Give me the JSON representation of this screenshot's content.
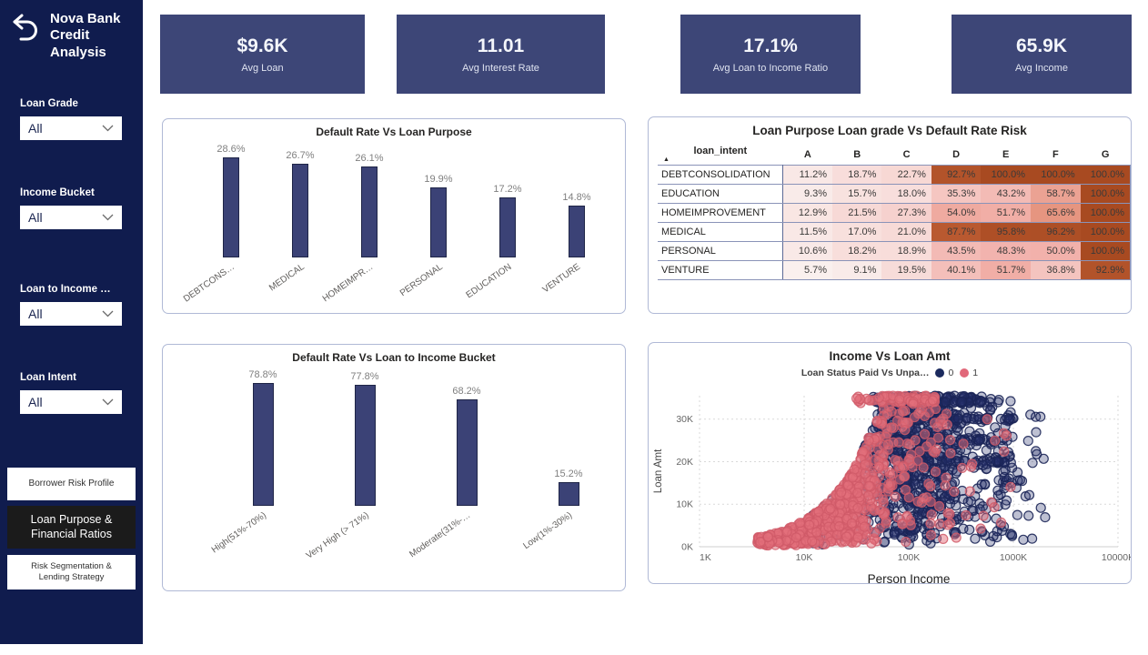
{
  "sidebar": {
    "title": "Nova Bank Credit Analysis",
    "back_icon": "back-undo-arrow",
    "filters": [
      {
        "label": "Loan Grade",
        "value": "All"
      },
      {
        "label": "Income Bucket",
        "value": "All"
      },
      {
        "label": "Loan to Income …",
        "value": "All"
      },
      {
        "label": "Loan Intent",
        "value": "All"
      }
    ],
    "nav": [
      {
        "label": "Borrower Risk Profile",
        "active": false
      },
      {
        "label": "Loan Purpose & Financial Ratios",
        "active": true
      },
      {
        "label": "Risk Segmentation & Lending Strategy",
        "active": false
      }
    ]
  },
  "kpis": [
    {
      "value": "$9.6K",
      "label": "Avg Loan"
    },
    {
      "value": "11.01",
      "label": "Avg Interest Rate"
    },
    {
      "value": "17.1%",
      "label": "Avg Loan to Income Ratio"
    },
    {
      "value": "65.9K",
      "label": "Avg Income"
    }
  ],
  "colors": {
    "sidebar_bg": "#101c4e",
    "kpi_bg": "#3d4677",
    "bar_fill": "#3b4276",
    "bar_border": "#1f2547",
    "panel_border": "#b0b9d6",
    "heat_high": "#a84a21",
    "scatter_navy": "#1b2a5e",
    "scatter_pink": "#e1687a"
  },
  "chart_data": [
    {
      "type": "bar",
      "title": "Default Rate Vs Loan Purpose",
      "categories": [
        "DEBTCONS…",
        "MEDICAL",
        "HOMEIMPR…",
        "PERSONAL",
        "EDUCATION",
        "VENTURE"
      ],
      "values": [
        28.6,
        26.7,
        26.1,
        19.9,
        17.2,
        14.8
      ],
      "value_format": "percent1",
      "xlabel": "",
      "ylabel": "",
      "ylim": [
        0,
        30
      ],
      "grid": false
    },
    {
      "type": "table",
      "title": "Loan Purpose Loan grade Vs Default Rate Risk",
      "row_header": "loan_intent",
      "sort_indicator": "asc",
      "columns": [
        "A",
        "B",
        "C",
        "D",
        "E",
        "F",
        "G"
      ],
      "rows": [
        {
          "label": "DEBTCONSOLIDATION",
          "values": [
            11.2,
            18.7,
            22.7,
            92.7,
            100.0,
            100.0,
            100.0
          ]
        },
        {
          "label": "EDUCATION",
          "values": [
            9.3,
            15.7,
            18.0,
            35.3,
            43.2,
            58.7,
            100.0
          ]
        },
        {
          "label": "HOMEIMPROVEMENT",
          "values": [
            12.9,
            21.5,
            27.3,
            54.0,
            51.7,
            65.6,
            100.0
          ]
        },
        {
          "label": "MEDICAL",
          "values": [
            11.5,
            17.0,
            21.0,
            87.7,
            95.8,
            96.2,
            100.0
          ]
        },
        {
          "label": "PERSONAL",
          "values": [
            10.6,
            18.2,
            18.9,
            43.5,
            48.3,
            50.0,
            100.0
          ]
        },
        {
          "label": "VENTURE",
          "values": [
            5.7,
            9.1,
            19.5,
            40.1,
            51.7,
            36.8,
            92.9
          ]
        }
      ],
      "value_format": "percent1",
      "heat_stops": [
        [
          0,
          "#fbf8f7"
        ],
        [
          0.5,
          "#f2b1ab"
        ],
        [
          0.72,
          "#e18a6e"
        ],
        [
          0.85,
          "#bd5c33"
        ],
        [
          1,
          "#a84a21"
        ]
      ]
    },
    {
      "type": "bar",
      "title": "Default Rate Vs Loan to Income Bucket",
      "categories": [
        "High(51%-70%)",
        "Very High (> 71%)",
        "Moderate(31%-…",
        "Low(1%-30%)"
      ],
      "values": [
        78.8,
        77.8,
        68.2,
        15.2
      ],
      "value_format": "percent1",
      "xlabel": "",
      "ylabel": "",
      "ylim": [
        0,
        85
      ],
      "grid": false
    },
    {
      "type": "scatter",
      "title": "Income Vs Loan Amt",
      "legend": {
        "label": "Loan Status Paid Vs Unpa…",
        "position": "top",
        "items": [
          {
            "name": "0",
            "color": "#1b2a5e"
          },
          {
            "name": "1",
            "color": "#e1687a"
          }
        ]
      },
      "xlabel": "Person Income",
      "ylabel": "Loan Amt",
      "x_scale": "log",
      "x_ticks": [
        "1K",
        "10K",
        "100K",
        "1000K",
        "10000K"
      ],
      "x_log_range": [
        3,
        7
      ],
      "y_ticks": [
        "0K",
        "10K",
        "20K",
        "30K"
      ],
      "y_tick_values": [
        0,
        10000,
        20000,
        30000
      ],
      "y_range": [
        0,
        35500
      ],
      "grid": "dotted",
      "seed": 42,
      "series": [
        {
          "name": "0",
          "fill": "#24306b",
          "fill_opacity": 0.3,
          "stroke": "#1b2556",
          "stroke_opacity": 0.9,
          "clusters": [
            {
              "n": 620,
              "x": [
                4.45,
                5.55
              ],
              "xshape": "mid",
              "wedge": {
                "slope": 0.62,
                "cap": 35000,
                "min": 500,
                "pow": 0.75
              }
            },
            {
              "n": 140,
              "x": [
                5.3,
                6.0
              ],
              "xshape": "uniform",
              "wedge": {
                "slope": 0.62,
                "cap": 35000,
                "min": 800,
                "pow": 0.9
              }
            },
            {
              "n": 70,
              "x": [
                4.05,
                4.5
              ],
              "xshape": "uniform",
              "wedge": {
                "slope": 0.62,
                "cap": 35000,
                "min": 400,
                "pow": 0.8
              }
            },
            {
              "n": 130,
              "x": [
                4.65,
                5.7
              ],
              "xshape": "uniform",
              "band": {
                "y": 34600,
                "jitter": 900
              }
            },
            {
              "n": 45,
              "x": [
                4.85,
                6.0
              ],
              "xshape": "uniform",
              "band": {
                "y": 30000,
                "jitter": 350
              }
            },
            {
              "n": 35,
              "x": [
                4.85,
                5.95
              ],
              "xshape": "uniform",
              "band": {
                "y": 25000,
                "jitter": 350
              }
            },
            {
              "n": 25,
              "x": [
                5.0,
                6.05
              ],
              "xshape": "uniform",
              "band": {
                "y": 20000,
                "jitter": 300
              }
            },
            {
              "n": 45,
              "x": [
                5.55,
                6.33
              ],
              "xshape": "uniform",
              "yrange": [
                1500,
                32000
              ]
            }
          ]
        },
        {
          "name": "1",
          "fill": "#e4707c",
          "fill_opacity": 0.5,
          "stroke": "#d05a68",
          "stroke_opacity": 0.85,
          "clusters": [
            {
              "n": 520,
              "x": [
                3.8,
                5.05
              ],
              "xshape": "mid",
              "wedge": {
                "slope": 0.62,
                "cap": 35000,
                "min": 400,
                "pow": 0.8
              }
            },
            {
              "n": 150,
              "x": [
                3.55,
                4.15
              ],
              "xshape": "uniform",
              "wedge": {
                "slope": 0.62,
                "cap": 35000,
                "min": 300,
                "pow": 0.9
              }
            },
            {
              "n": 70,
              "x": [
                4.5,
                5.25
              ],
              "xshape": "uniform",
              "band": {
                "y": 34600,
                "jitter": 900
              }
            },
            {
              "n": 60,
              "x": [
                4.9,
                5.4
              ],
              "xshape": "uniform",
              "wedge": {
                "slope": 0.62,
                "cap": 35000,
                "min": 1000,
                "pow": 0.8
              }
            },
            {
              "n": 30,
              "x": [
                5.1,
                6.0
              ],
              "xshape": "uniform",
              "yrange": [
                2000,
                33000
              ]
            }
          ]
        }
      ]
    }
  ]
}
